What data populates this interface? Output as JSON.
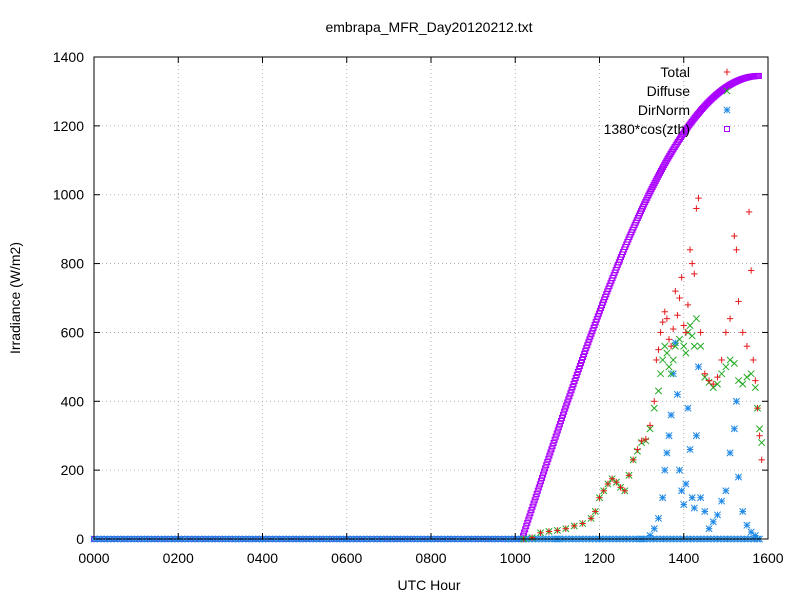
{
  "chart_data": {
    "type": "scatter",
    "title": "embrapa_MFR_Day20120212.txt",
    "xlabel": "UTC Hour",
    "ylabel": "Irradiance (W/m2)",
    "xlim": [
      0,
      1600
    ],
    "ylim": [
      0,
      1400
    ],
    "x_ticks": [
      "0000",
      "0200",
      "0400",
      "0600",
      "0800",
      "1000",
      "1200",
      "1400",
      "1600"
    ],
    "y_ticks": [
      "0",
      "200",
      "400",
      "600",
      "800",
      "1000",
      "1200",
      "1400"
    ],
    "grid": true,
    "legend_position": "top-right",
    "series": [
      {
        "name": "Total",
        "marker": "plus",
        "color": "#e41a1c",
        "points": [
          [
            1020,
            0
          ],
          [
            1040,
            4
          ],
          [
            1060,
            18
          ],
          [
            1080,
            22
          ],
          [
            1100,
            25
          ],
          [
            1120,
            30
          ],
          [
            1140,
            38
          ],
          [
            1160,
            45
          ],
          [
            1180,
            60
          ],
          [
            1190,
            80
          ],
          [
            1200,
            120
          ],
          [
            1210,
            140
          ],
          [
            1220,
            160
          ],
          [
            1230,
            175
          ],
          [
            1240,
            165
          ],
          [
            1250,
            150
          ],
          [
            1260,
            140
          ],
          [
            1270,
            185
          ],
          [
            1280,
            230
          ],
          [
            1290,
            260
          ],
          [
            1300,
            285
          ],
          [
            1310,
            290
          ],
          [
            1320,
            330
          ],
          [
            1330,
            400
          ],
          [
            1335,
            520
          ],
          [
            1340,
            550
          ],
          [
            1345,
            600
          ],
          [
            1350,
            630
          ],
          [
            1355,
            660
          ],
          [
            1360,
            640
          ],
          [
            1365,
            580
          ],
          [
            1370,
            560
          ],
          [
            1375,
            610
          ],
          [
            1380,
            720
          ],
          [
            1385,
            650
          ],
          [
            1390,
            700
          ],
          [
            1395,
            760
          ],
          [
            1400,
            620
          ],
          [
            1405,
            600
          ],
          [
            1410,
            680
          ],
          [
            1415,
            840
          ],
          [
            1420,
            800
          ],
          [
            1425,
            770
          ],
          [
            1430,
            960
          ],
          [
            1435,
            990
          ],
          [
            1440,
            600
          ],
          [
            1450,
            480
          ],
          [
            1460,
            460
          ],
          [
            1470,
            450
          ],
          [
            1480,
            470
          ],
          [
            1490,
            520
          ],
          [
            1500,
            600
          ],
          [
            1510,
            640
          ],
          [
            1520,
            880
          ],
          [
            1525,
            840
          ],
          [
            1530,
            690
          ],
          [
            1540,
            600
          ],
          [
            1550,
            560
          ],
          [
            1555,
            950
          ],
          [
            1560,
            780
          ],
          [
            1565,
            520
          ],
          [
            1570,
            460
          ],
          [
            1575,
            380
          ],
          [
            1580,
            300
          ],
          [
            1585,
            230
          ]
        ]
      },
      {
        "name": "Diffuse",
        "marker": "cross",
        "color": "#22aa22",
        "points": [
          [
            1020,
            0
          ],
          [
            1040,
            4
          ],
          [
            1060,
            18
          ],
          [
            1080,
            22
          ],
          [
            1100,
            25
          ],
          [
            1120,
            30
          ],
          [
            1140,
            38
          ],
          [
            1160,
            45
          ],
          [
            1180,
            60
          ],
          [
            1190,
            80
          ],
          [
            1200,
            120
          ],
          [
            1210,
            140
          ],
          [
            1220,
            160
          ],
          [
            1230,
            175
          ],
          [
            1240,
            165
          ],
          [
            1250,
            150
          ],
          [
            1260,
            140
          ],
          [
            1270,
            185
          ],
          [
            1280,
            230
          ],
          [
            1290,
            255
          ],
          [
            1300,
            280
          ],
          [
            1310,
            285
          ],
          [
            1320,
            320
          ],
          [
            1330,
            380
          ],
          [
            1340,
            430
          ],
          [
            1345,
            480
          ],
          [
            1350,
            520
          ],
          [
            1355,
            560
          ],
          [
            1360,
            540
          ],
          [
            1365,
            500
          ],
          [
            1370,
            480
          ],
          [
            1375,
            520
          ],
          [
            1380,
            560
          ],
          [
            1390,
            580
          ],
          [
            1400,
            560
          ],
          [
            1405,
            540
          ],
          [
            1410,
            600
          ],
          [
            1415,
            620
          ],
          [
            1420,
            590
          ],
          [
            1425,
            560
          ],
          [
            1430,
            640
          ],
          [
            1440,
            560
          ],
          [
            1450,
            470
          ],
          [
            1460,
            455
          ],
          [
            1470,
            440
          ],
          [
            1480,
            450
          ],
          [
            1490,
            480
          ],
          [
            1500,
            500
          ],
          [
            1510,
            520
          ],
          [
            1520,
            510
          ],
          [
            1530,
            460
          ],
          [
            1540,
            450
          ],
          [
            1550,
            470
          ],
          [
            1560,
            480
          ],
          [
            1570,
            440
          ],
          [
            1575,
            380
          ],
          [
            1580,
            320
          ],
          [
            1585,
            280
          ]
        ]
      },
      {
        "name": "DirNorm",
        "marker": "star",
        "color": "#1e88e5",
        "points": [
          [
            0,
            0
          ],
          [
            200,
            0
          ],
          [
            400,
            0
          ],
          [
            600,
            0
          ],
          [
            800,
            0
          ],
          [
            1000,
            0
          ],
          [
            1100,
            0
          ],
          [
            1200,
            0
          ],
          [
            1300,
            0
          ],
          [
            1320,
            10
          ],
          [
            1330,
            30
          ],
          [
            1340,
            60
          ],
          [
            1350,
            120
          ],
          [
            1355,
            200
          ],
          [
            1360,
            250
          ],
          [
            1365,
            300
          ],
          [
            1370,
            360
          ],
          [
            1375,
            480
          ],
          [
            1380,
            570
          ],
          [
            1385,
            420
          ],
          [
            1390,
            200
          ],
          [
            1395,
            140
          ],
          [
            1400,
            100
          ],
          [
            1405,
            160
          ],
          [
            1410,
            380
          ],
          [
            1415,
            260
          ],
          [
            1420,
            120
          ],
          [
            1425,
            90
          ],
          [
            1430,
            300
          ],
          [
            1435,
            500
          ],
          [
            1440,
            120
          ],
          [
            1450,
            80
          ],
          [
            1460,
            30
          ],
          [
            1470,
            50
          ],
          [
            1480,
            70
          ],
          [
            1490,
            110
          ],
          [
            1500,
            140
          ],
          [
            1510,
            250
          ],
          [
            1520,
            320
          ],
          [
            1525,
            400
          ],
          [
            1530,
            180
          ],
          [
            1540,
            80
          ],
          [
            1550,
            40
          ],
          [
            1560,
            20
          ],
          [
            1570,
            10
          ],
          [
            1580,
            0
          ]
        ]
      },
      {
        "name": "1380*cos(zth)",
        "marker": "square",
        "color": "#aa00ff",
        "x": [
          1016,
          1580
        ],
        "y": [
          0,
          1345
        ]
      }
    ]
  }
}
